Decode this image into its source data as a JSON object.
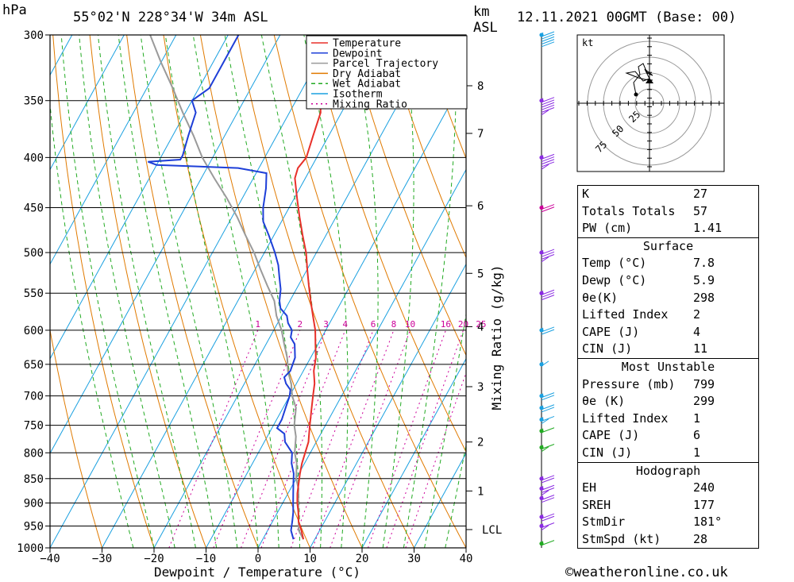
{
  "header": {
    "location": "55°02'N 228°34'W 34m ASL",
    "datetime": "12.11.2021 00GMT (Base: 00)",
    "unit_left": "hPa",
    "unit_right_1": "km",
    "unit_right_2": "ASL"
  },
  "chart_data": {
    "type": "line",
    "subtype": "skew-t log-p",
    "xlabel": "Dewpoint / Temperature (°C)",
    "ylabel_right": "Mixing Ratio (g/kg)",
    "x_ticks": [
      "−40",
      "−30",
      "−20",
      "−10",
      "0",
      "10",
      "20",
      "30",
      "40"
    ],
    "x_tick_values": [
      -40,
      -30,
      -20,
      -10,
      0,
      10,
      20,
      30,
      40
    ],
    "pressure_levels": [
      300,
      350,
      400,
      450,
      500,
      550,
      600,
      650,
      700,
      750,
      800,
      850,
      900,
      950,
      1000
    ],
    "pressure_labels": [
      "300",
      "350",
      "400",
      "450",
      "500",
      "550",
      "600",
      "650",
      "700",
      "750",
      "800",
      "850",
      "900",
      "950",
      "1000"
    ],
    "ylim_hpa": [
      300,
      1000
    ],
    "xlim_c": [
      -40,
      40
    ],
    "km_ticks": [
      {
        "label": "8",
        "p": 338
      },
      {
        "label": "7",
        "p": 378
      },
      {
        "label": "6",
        "p": 448
      },
      {
        "label": "5",
        "p": 525
      },
      {
        "label": "4",
        "p": 595
      },
      {
        "label": "3",
        "p": 685
      },
      {
        "label": "2",
        "p": 780
      },
      {
        "label": "1",
        "p": 875
      }
    ],
    "lcl": {
      "label": "LCL",
      "p": 958
    },
    "mixing_ratio_labels": [
      "1",
      "2",
      "3",
      "4",
      "6",
      "8",
      "10",
      "16",
      "20",
      "25"
    ],
    "mixing_ratio_values": [
      1,
      2,
      3,
      4,
      6,
      8,
      10,
      16,
      20,
      25
    ],
    "legend": [
      {
        "name": "Temperature",
        "color": "#e8302a",
        "dash": ""
      },
      {
        "name": "Dewpoint",
        "color": "#1e3fd8",
        "dash": ""
      },
      {
        "name": "Parcel Trajectory",
        "color": "#9a9a9a",
        "dash": ""
      },
      {
        "name": "Dry Adiabat",
        "color": "#e07a00",
        "dash": ""
      },
      {
        "name": "Wet Adiabat",
        "color": "#22aa22",
        "dash": "5,4"
      },
      {
        "name": "Isotherm",
        "color": "#1aa0e0",
        "dash": ""
      },
      {
        "name": "Mixing Ratio",
        "color": "#cc0099",
        "dash": "2,4"
      }
    ],
    "series": [
      {
        "name": "Temperature",
        "color": "#e8302a",
        "points": [
          [
            7.8,
            980
          ],
          [
            6.5,
            960
          ],
          [
            5.0,
            940
          ],
          [
            4.0,
            920
          ],
          [
            2.8,
            900
          ],
          [
            1.8,
            880
          ],
          [
            1.0,
            860
          ],
          [
            0.2,
            840
          ],
          [
            -0.5,
            820
          ],
          [
            -1.0,
            800
          ],
          [
            -1.5,
            780
          ],
          [
            -2.0,
            770
          ],
          [
            -3.0,
            750
          ],
          [
            -4.5,
            720
          ],
          [
            -5.5,
            700
          ],
          [
            -6.5,
            680
          ],
          [
            -8.0,
            660
          ],
          [
            -9.0,
            640
          ],
          [
            -10.5,
            620
          ],
          [
            -12.0,
            600
          ],
          [
            -14.0,
            580
          ],
          [
            -16.0,
            560
          ],
          [
            -18.0,
            540
          ],
          [
            -20.0,
            520
          ],
          [
            -22.0,
            500
          ],
          [
            -24.5,
            480
          ],
          [
            -27.0,
            460
          ],
          [
            -29.5,
            440
          ],
          [
            -32.0,
            420
          ],
          [
            -32.5,
            410
          ],
          [
            -32.0,
            400
          ],
          [
            -33.0,
            380
          ],
          [
            -34.0,
            360
          ],
          [
            -36.0,
            345
          ],
          [
            -38.0,
            330
          ],
          [
            -41.5,
            310
          ],
          [
            -43.5,
            300
          ]
        ]
      },
      {
        "name": "Dewpoint",
        "color": "#1e3fd8",
        "points": [
          [
            5.9,
            980
          ],
          [
            4.5,
            960
          ],
          [
            3.8,
            940
          ],
          [
            3.0,
            920
          ],
          [
            2.0,
            900
          ],
          [
            1.0,
            880
          ],
          [
            0.0,
            860
          ],
          [
            -1.0,
            840
          ],
          [
            -2.5,
            820
          ],
          [
            -3.5,
            800
          ],
          [
            -6.0,
            780
          ],
          [
            -7.0,
            765
          ],
          [
            -9.0,
            755
          ],
          [
            -9.0,
            740
          ],
          [
            -9.5,
            720
          ],
          [
            -10.0,
            700
          ],
          [
            -10.5,
            690
          ],
          [
            -12.0,
            680
          ],
          [
            -13.0,
            670
          ],
          [
            -12.5,
            660
          ],
          [
            -13.0,
            640
          ],
          [
            -14.5,
            620
          ],
          [
            -16.0,
            610
          ],
          [
            -16.5,
            600
          ],
          [
            -18.0,
            590
          ],
          [
            -19.0,
            580
          ],
          [
            -21.0,
            570
          ],
          [
            -22.0,
            560
          ],
          [
            -23.0,
            545
          ],
          [
            -24.5,
            530
          ],
          [
            -26.0,
            515
          ],
          [
            -28.0,
            500
          ],
          [
            -31.0,
            480
          ],
          [
            -33.5,
            465
          ],
          [
            -35.0,
            450
          ],
          [
            -36.5,
            430
          ],
          [
            -37.0,
            425
          ],
          [
            -38.0,
            415
          ],
          [
            -44.0,
            410
          ],
          [
            -60.0,
            407
          ],
          [
            -62.0,
            404
          ],
          [
            -56.0,
            402
          ],
          [
            -56.0,
            398
          ],
          [
            -57.0,
            380
          ],
          [
            -58.0,
            360
          ],
          [
            -60.0,
            350
          ],
          [
            -58.0,
            340
          ],
          [
            -58.0,
            320
          ],
          [
            -58.0,
            300
          ]
        ]
      },
      {
        "name": "Parcel Trajectory",
        "color": "#9a9a9a",
        "points": [
          [
            7.8,
            980
          ],
          [
            6.0,
            960
          ],
          [
            5.0,
            940
          ],
          [
            4.0,
            920
          ],
          [
            3.0,
            900
          ],
          [
            1.5,
            870
          ],
          [
            0.0,
            850
          ],
          [
            -1.5,
            820
          ],
          [
            -3.0,
            800
          ],
          [
            -4.5,
            770
          ],
          [
            -6.0,
            750
          ],
          [
            -7.5,
            720
          ],
          [
            -9.5,
            700
          ],
          [
            -11.0,
            680
          ],
          [
            -13.0,
            660
          ],
          [
            -14.5,
            640
          ],
          [
            -16.5,
            620
          ],
          [
            -18.5,
            600
          ],
          [
            -21.0,
            580
          ],
          [
            -23.0,
            560
          ],
          [
            -26.0,
            540
          ],
          [
            -29.0,
            520
          ],
          [
            -32.0,
            500
          ],
          [
            -35.5,
            480
          ],
          [
            -39.0,
            460
          ],
          [
            -43.0,
            440
          ],
          [
            -47.5,
            420
          ],
          [
            -52.0,
            400
          ],
          [
            -56.0,
            380
          ],
          [
            -60.5,
            360
          ],
          [
            -65.0,
            340
          ],
          [
            -70.0,
            320
          ],
          [
            -75.0,
            300
          ]
        ]
      }
    ],
    "wind_barbs": [
      {
        "p": 300,
        "color": "#1aa0e0",
        "dir": 250,
        "spd": 50
      },
      {
        "p": 350,
        "color": "#8a2be2",
        "dir": 255,
        "spd": 55
      },
      {
        "p": 400,
        "color": "#8a2be2",
        "dir": 250,
        "spd": 45
      },
      {
        "p": 450,
        "color": "#cc0099",
        "dir": 250,
        "spd": 20
      },
      {
        "p": 500,
        "color": "#8a2be2",
        "dir": 250,
        "spd": 35
      },
      {
        "p": 550,
        "color": "#8a2be2",
        "dir": 255,
        "spd": 30
      },
      {
        "p": 600,
        "color": "#1aa0e0",
        "dir": 240,
        "spd": 20
      },
      {
        "p": 650,
        "color": "#1aa0e0",
        "dir": 220,
        "spd": 5
      },
      {
        "p": 700,
        "color": "#1aa0e0",
        "dir": 270,
        "spd": 20
      },
      {
        "p": 720,
        "color": "#1aa0e0",
        "dir": 230,
        "spd": 20
      },
      {
        "p": 740,
        "color": "#1aa0e0",
        "dir": 230,
        "spd": 15
      },
      {
        "p": 760,
        "color": "#22aa22",
        "dir": 240,
        "spd": 10
      },
      {
        "p": 790,
        "color": "#22aa22",
        "dir": 260,
        "spd": 15
      },
      {
        "p": 850,
        "color": "#8a2be2",
        "dir": 200,
        "spd": 20
      },
      {
        "p": 870,
        "color": "#8a2be2",
        "dir": 210,
        "spd": 25
      },
      {
        "p": 890,
        "color": "#8a2be2",
        "dir": 205,
        "spd": 20
      },
      {
        "p": 930,
        "color": "#8a2be2",
        "dir": 200,
        "spd": 20
      },
      {
        "p": 950,
        "color": "#8a2be2",
        "dir": 200,
        "spd": 15
      },
      {
        "p": 990,
        "color": "#22aa22",
        "dir": 160,
        "spd": 10
      }
    ],
    "hodograph": {
      "unit": "kt",
      "ring_labels": [
        "25",
        "50",
        "75"
      ],
      "ring_values": [
        25,
        50,
        75
      ]
    }
  },
  "indices": {
    "general": [
      {
        "key": "K",
        "value": "27"
      },
      {
        "key": "Totals Totals",
        "value": "57"
      },
      {
        "key": "PW (cm)",
        "value": "1.41"
      }
    ],
    "surface_title": "Surface",
    "surface": [
      {
        "key": "Temp (°C)",
        "value": "7.8"
      },
      {
        "key": "Dewp (°C)",
        "value": "5.9"
      },
      {
        "key": "θe(K)",
        "value": "298"
      },
      {
        "key": "Lifted Index",
        "value": "2"
      },
      {
        "key": "CAPE (J)",
        "value": "4"
      },
      {
        "key": "CIN (J)",
        "value": "11"
      }
    ],
    "mu_title": "Most Unstable",
    "mu": [
      {
        "key": "Pressure (mb)",
        "value": "799"
      },
      {
        "key": "θe (K)",
        "value": "299"
      },
      {
        "key": "Lifted Index",
        "value": "1"
      },
      {
        "key": "CAPE (J)",
        "value": "6"
      },
      {
        "key": "CIN (J)",
        "value": "1"
      }
    ],
    "hodo_title": "Hodograph",
    "hodo": [
      {
        "key": "EH",
        "value": "240"
      },
      {
        "key": "SREH",
        "value": "177"
      },
      {
        "key": "StmDir",
        "value": "181°"
      },
      {
        "key": "StmSpd (kt)",
        "value": "28"
      }
    ]
  },
  "credit": "©weatheronline.co.uk"
}
